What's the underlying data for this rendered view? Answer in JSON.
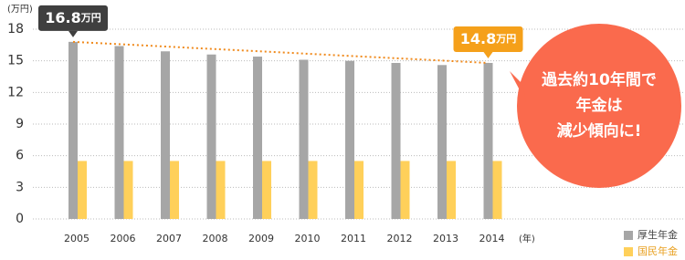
{
  "chart_data": {
    "type": "bar",
    "y_unit": "(万円)",
    "x_unit": "(年)",
    "categories": [
      "2005",
      "2006",
      "2007",
      "2008",
      "2009",
      "2010",
      "2011",
      "2012",
      "2013",
      "2014"
    ],
    "series": [
      {
        "name": "厚生年金",
        "color": "#a6a6a6",
        "values": [
          16.8,
          16.4,
          15.9,
          15.6,
          15.4,
          15.1,
          15.0,
          14.8,
          14.6,
          14.8
        ],
        "value_labels": [
          "16.8万円",
          null,
          null,
          null,
          null,
          null,
          null,
          null,
          null,
          "14.8万円"
        ]
      },
      {
        "name": "国民年金",
        "color": "#ffd05a",
        "values": [
          5.5,
          5.5,
          5.5,
          5.5,
          5.5,
          5.5,
          5.5,
          5.5,
          5.5,
          5.5
        ]
      }
    ],
    "ylim": [
      0,
      18
    ],
    "yticks": [
      0,
      3,
      6,
      9,
      12,
      15,
      18
    ],
    "grid": true,
    "annotation": [
      "過去約10年間で",
      "年金は",
      "減少傾向に!"
    ]
  }
}
